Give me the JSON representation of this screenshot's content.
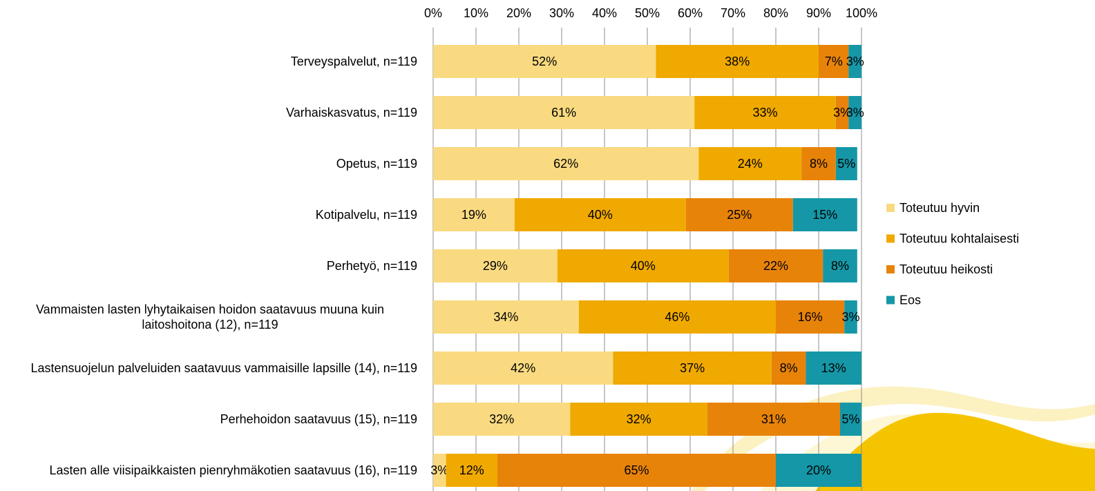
{
  "chart_data": {
    "type": "stacked-barh",
    "categories": [
      "Terveyspalvelut, n=119",
      "Varhaiskasvatus, n=119",
      "Opetus, n=119",
      "Kotipalvelu, n=119",
      "Perhetyö, n=119",
      "Vammaisten lasten lyhytaikaisen hoidon saatavuus muuna kuin laitoshoitona (12), n=119",
      "Lastensuojelun palveluiden saatavuus vammaisille lapsille (14), n=119",
      "Perhehoidon saatavuus (15), n=119",
      "Lasten alle viisipaikkaisten pienryhmäkotien saatavuus (16), n=119"
    ],
    "series": [
      {
        "name": "Toteutuu hyvin",
        "color": "#f9da80",
        "values": [
          52,
          61,
          62,
          19,
          29,
          34,
          42,
          32,
          3
        ],
        "value_labels": [
          "52%",
          "61%",
          "62%",
          "19%",
          "29%",
          "34%",
          "42%",
          "32%",
          "3%"
        ]
      },
      {
        "name": "Toteutuu kohtalaisesti",
        "color": "#f0a900",
        "values": [
          38,
          33,
          24,
          40,
          40,
          46,
          37,
          32,
          12
        ],
        "value_labels": [
          "38%",
          "33%",
          "24%",
          "40%",
          "40%",
          "46%",
          "37%",
          "32%",
          "12%"
        ]
      },
      {
        "name": "Toteutuu heikosti",
        "color": "#e8830a",
        "values": [
          7,
          3,
          8,
          25,
          22,
          16,
          8,
          31,
          65
        ],
        "value_labels": [
          "7%",
          "3%",
          "8%",
          "25%",
          "22%",
          "16%",
          "8%",
          "31%",
          "65%"
        ]
      },
      {
        "name": "Eos",
        "color": "#1597a7",
        "values": [
          3,
          3,
          5,
          15,
          8,
          3,
          13,
          5,
          20
        ],
        "value_labels": [
          "3%",
          "3%",
          "5%",
          "15%",
          "8%",
          "3%",
          "13%",
          "5%",
          "20%"
        ]
      }
    ],
    "xlim": [
      0,
      100
    ],
    "xticks": [
      {
        "value": 0,
        "label": "0%"
      },
      {
        "value": 10,
        "label": "10%"
      },
      {
        "value": 20,
        "label": "20%"
      },
      {
        "value": 30,
        "label": "30%"
      },
      {
        "value": 40,
        "label": "40%"
      },
      {
        "value": 50,
        "label": "50%"
      },
      {
        "value": 60,
        "label": "60%"
      },
      {
        "value": 70,
        "label": "70%"
      },
      {
        "value": 80,
        "label": "80%"
      },
      {
        "value": 90,
        "label": "90%"
      },
      {
        "value": 100,
        "label": "100%"
      }
    ],
    "grid": true,
    "legend": "right"
  }
}
